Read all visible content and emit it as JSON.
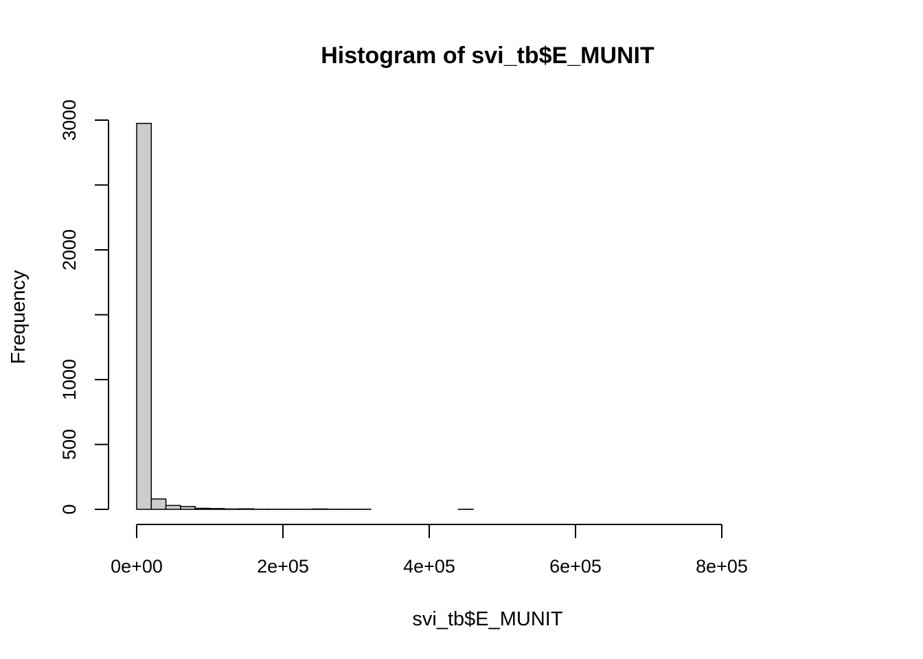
{
  "chart_data": {
    "type": "bar",
    "title": "Histogram of svi_tb$E_MUNIT",
    "xlabel": "svi_tb$E_MUNIT",
    "ylabel": "Frequency",
    "xlim": [
      0,
      960000
    ],
    "ylim": [
      0,
      3000
    ],
    "x_ticks": [
      0,
      200000,
      400000,
      600000,
      800000
    ],
    "x_tick_labels": [
      "0e+00",
      "2e+05",
      "4e+05",
      "6e+05",
      "8e+05"
    ],
    "y_ticks": [
      0,
      500,
      1000,
      1500,
      2000,
      2500,
      3000
    ],
    "y_tick_labels": [
      "0",
      "500",
      "1000",
      "",
      "2000",
      "",
      "3000"
    ],
    "bin_width": 20000,
    "bin_start": 0,
    "values": [
      2975,
      80,
      30,
      22,
      8,
      6,
      3,
      4,
      1,
      1,
      1,
      1,
      3,
      1,
      1,
      1,
      0,
      0,
      0,
      0,
      0,
      0,
      1,
      0,
      0,
      0,
      0,
      0,
      0,
      0,
      0,
      0,
      0,
      0,
      0,
      0,
      0,
      0,
      0,
      0,
      0,
      0,
      0,
      0,
      0,
      0,
      0,
      0
    ],
    "grid": false,
    "legend": "none",
    "bar_fill": "#cccccc",
    "bar_stroke": "#000000"
  }
}
